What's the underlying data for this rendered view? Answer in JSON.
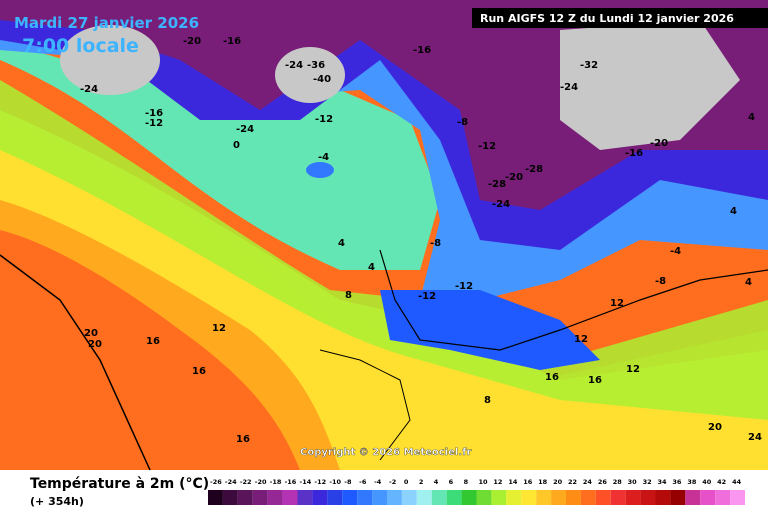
{
  "header": {
    "date": "Mardi 27 janvier 2026",
    "time": "7:00 locale",
    "run": "Run AIGFS 12 Z du Lundi 12 janvier 2026"
  },
  "copyright": "Copyright © 2026 Meteociel.fr",
  "legend": {
    "title": "Température à 2m (°C)",
    "lead": "(+ 354h)",
    "ticks": [
      -26,
      -24,
      -22,
      -20,
      -18,
      -16,
      -14,
      -12,
      -10,
      -8,
      -6,
      -4,
      -2,
      0,
      2,
      4,
      6,
      8,
      10,
      12,
      14,
      16,
      18,
      20,
      22,
      24,
      26,
      28,
      30,
      32,
      34,
      36,
      38,
      40,
      42,
      44
    ],
    "colors": [
      "#1e001e",
      "#3c0a3c",
      "#5a145a",
      "#781e78",
      "#962896",
      "#b432b4",
      "#5a32c8",
      "#3c28dc",
      "#2840e6",
      "#1e5aff",
      "#3278ff",
      "#4696ff",
      "#64b4ff",
      "#8cd2ff",
      "#a0f0f0",
      "#64e6b4",
      "#3cdc78",
      "#32c832",
      "#6edc32",
      "#aaf032",
      "#e6f032",
      "#ffe632",
      "#ffc828",
      "#ffaa1e",
      "#ff8c14",
      "#ff6e1e",
      "#ff5028",
      "#f03232",
      "#dc1e1e",
      "#c81414",
      "#b40a0a",
      "#960000",
      "#c83296",
      "#e650c8",
      "#f06edc",
      "#fa96f0"
    ]
  },
  "map_labels": [
    -24,
    -16,
    -12,
    -20,
    -16,
    -24,
    -36,
    -40,
    -12,
    -24,
    -16,
    -24,
    -32,
    -28,
    -20,
    -16,
    -12,
    -8,
    -12,
    -8,
    -4,
    0,
    4,
    -28,
    -20,
    -24,
    8,
    -8,
    -12,
    12,
    16,
    20,
    20,
    16,
    12,
    16,
    8,
    4,
    -4,
    4,
    12,
    4,
    16,
    16,
    12,
    20,
    24,
    4
  ]
}
